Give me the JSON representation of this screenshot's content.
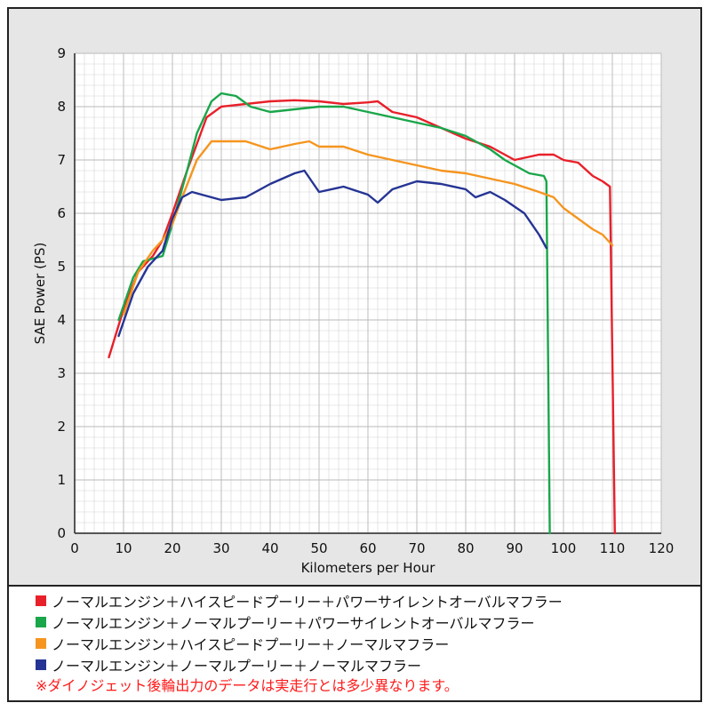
{
  "chart_data": {
    "type": "line",
    "xlabel": "Kilometers per Hour",
    "ylabel": "SAE Power (PS)",
    "xlim": [
      0,
      120
    ],
    "ylim": [
      0,
      9
    ],
    "x_ticks": [
      "0",
      "10",
      "20",
      "30",
      "40",
      "50",
      "60",
      "70",
      "80",
      "90",
      "100",
      "110",
      "120"
    ],
    "y_ticks": [
      "0",
      "1",
      "2",
      "3",
      "4",
      "5",
      "6",
      "7",
      "8",
      "9"
    ],
    "grid": true,
    "legend_position": "bottom",
    "series": [
      {
        "name": "ノーマルエンジン＋ハイスピードプーリー＋パワーサイレントオーバルマフラー",
        "color": "#e8202a",
        "points": [
          [
            7,
            3.3
          ],
          [
            10,
            4.2
          ],
          [
            13,
            4.9
          ],
          [
            16,
            5.2
          ],
          [
            18,
            5.5
          ],
          [
            20,
            6.0
          ],
          [
            23,
            6.8
          ],
          [
            25,
            7.3
          ],
          [
            27,
            7.8
          ],
          [
            30,
            8.0
          ],
          [
            35,
            8.05
          ],
          [
            40,
            8.1
          ],
          [
            45,
            8.12
          ],
          [
            50,
            8.1
          ],
          [
            55,
            8.05
          ],
          [
            60,
            8.08
          ],
          [
            62,
            8.1
          ],
          [
            65,
            7.9
          ],
          [
            70,
            7.8
          ],
          [
            75,
            7.6
          ],
          [
            80,
            7.4
          ],
          [
            85,
            7.25
          ],
          [
            90,
            7.0
          ],
          [
            95,
            7.1
          ],
          [
            98,
            7.1
          ],
          [
            100,
            7.0
          ],
          [
            103,
            6.95
          ],
          [
            106,
            6.7
          ],
          [
            108,
            6.6
          ],
          [
            109.5,
            6.5
          ],
          [
            110.5,
            0
          ]
        ]
      },
      {
        "name": "ノーマルエンジン＋ノーマルプーリー＋パワーサイレントオーバルマフラー",
        "color": "#1aa64a",
        "points": [
          [
            9,
            4.0
          ],
          [
            12,
            4.8
          ],
          [
            14,
            5.1
          ],
          [
            16,
            5.15
          ],
          [
            18,
            5.2
          ],
          [
            20,
            5.8
          ],
          [
            23,
            6.8
          ],
          [
            25,
            7.5
          ],
          [
            28,
            8.1
          ],
          [
            30,
            8.25
          ],
          [
            33,
            8.2
          ],
          [
            36,
            8.0
          ],
          [
            40,
            7.9
          ],
          [
            45,
            7.95
          ],
          [
            50,
            8.0
          ],
          [
            55,
            8.0
          ],
          [
            60,
            7.9
          ],
          [
            65,
            7.8
          ],
          [
            70,
            7.7
          ],
          [
            75,
            7.6
          ],
          [
            80,
            7.45
          ],
          [
            85,
            7.2
          ],
          [
            88,
            7.0
          ],
          [
            90,
            6.9
          ],
          [
            93,
            6.75
          ],
          [
            96,
            6.7
          ],
          [
            96.5,
            6.6
          ],
          [
            97.2,
            0
          ]
        ]
      },
      {
        "name": "ノーマルエンジン＋ハイスピードプーリー＋ノーマルマフラー",
        "color": "#f5951f",
        "points": [
          [
            10,
            4.1
          ],
          [
            13,
            4.9
          ],
          [
            16,
            5.3
          ],
          [
            18,
            5.5
          ],
          [
            20,
            5.8
          ],
          [
            22,
            6.3
          ],
          [
            25,
            7.0
          ],
          [
            28,
            7.35
          ],
          [
            30,
            7.35
          ],
          [
            35,
            7.35
          ],
          [
            40,
            7.2
          ],
          [
            45,
            7.3
          ],
          [
            48,
            7.35
          ],
          [
            50,
            7.25
          ],
          [
            55,
            7.25
          ],
          [
            60,
            7.1
          ],
          [
            65,
            7.0
          ],
          [
            70,
            6.9
          ],
          [
            75,
            6.8
          ],
          [
            80,
            6.75
          ],
          [
            85,
            6.65
          ],
          [
            90,
            6.55
          ],
          [
            95,
            6.4
          ],
          [
            98,
            6.3
          ],
          [
            100,
            6.1
          ],
          [
            103,
            5.9
          ],
          [
            106,
            5.7
          ],
          [
            108,
            5.6
          ],
          [
            110,
            5.4
          ]
        ]
      },
      {
        "name": "ノーマルエンジン＋ノーマルプーリー＋ノーマルマフラー",
        "color": "#253494",
        "points": [
          [
            9,
            3.7
          ],
          [
            12,
            4.5
          ],
          [
            15,
            5.0
          ],
          [
            18,
            5.3
          ],
          [
            20,
            5.9
          ],
          [
            22,
            6.3
          ],
          [
            24,
            6.4
          ],
          [
            26,
            6.35
          ],
          [
            30,
            6.25
          ],
          [
            35,
            6.3
          ],
          [
            40,
            6.55
          ],
          [
            45,
            6.75
          ],
          [
            47,
            6.8
          ],
          [
            50,
            6.4
          ],
          [
            55,
            6.5
          ],
          [
            60,
            6.35
          ],
          [
            62,
            6.2
          ],
          [
            65,
            6.45
          ],
          [
            70,
            6.6
          ],
          [
            75,
            6.55
          ],
          [
            80,
            6.45
          ],
          [
            82,
            6.3
          ],
          [
            85,
            6.4
          ],
          [
            88,
            6.25
          ],
          [
            92,
            6.0
          ],
          [
            95,
            5.6
          ],
          [
            96.5,
            5.35
          ]
        ]
      }
    ]
  },
  "note": "※ダイノジェット後輪出力のデータは実走行とは多少異なります。"
}
